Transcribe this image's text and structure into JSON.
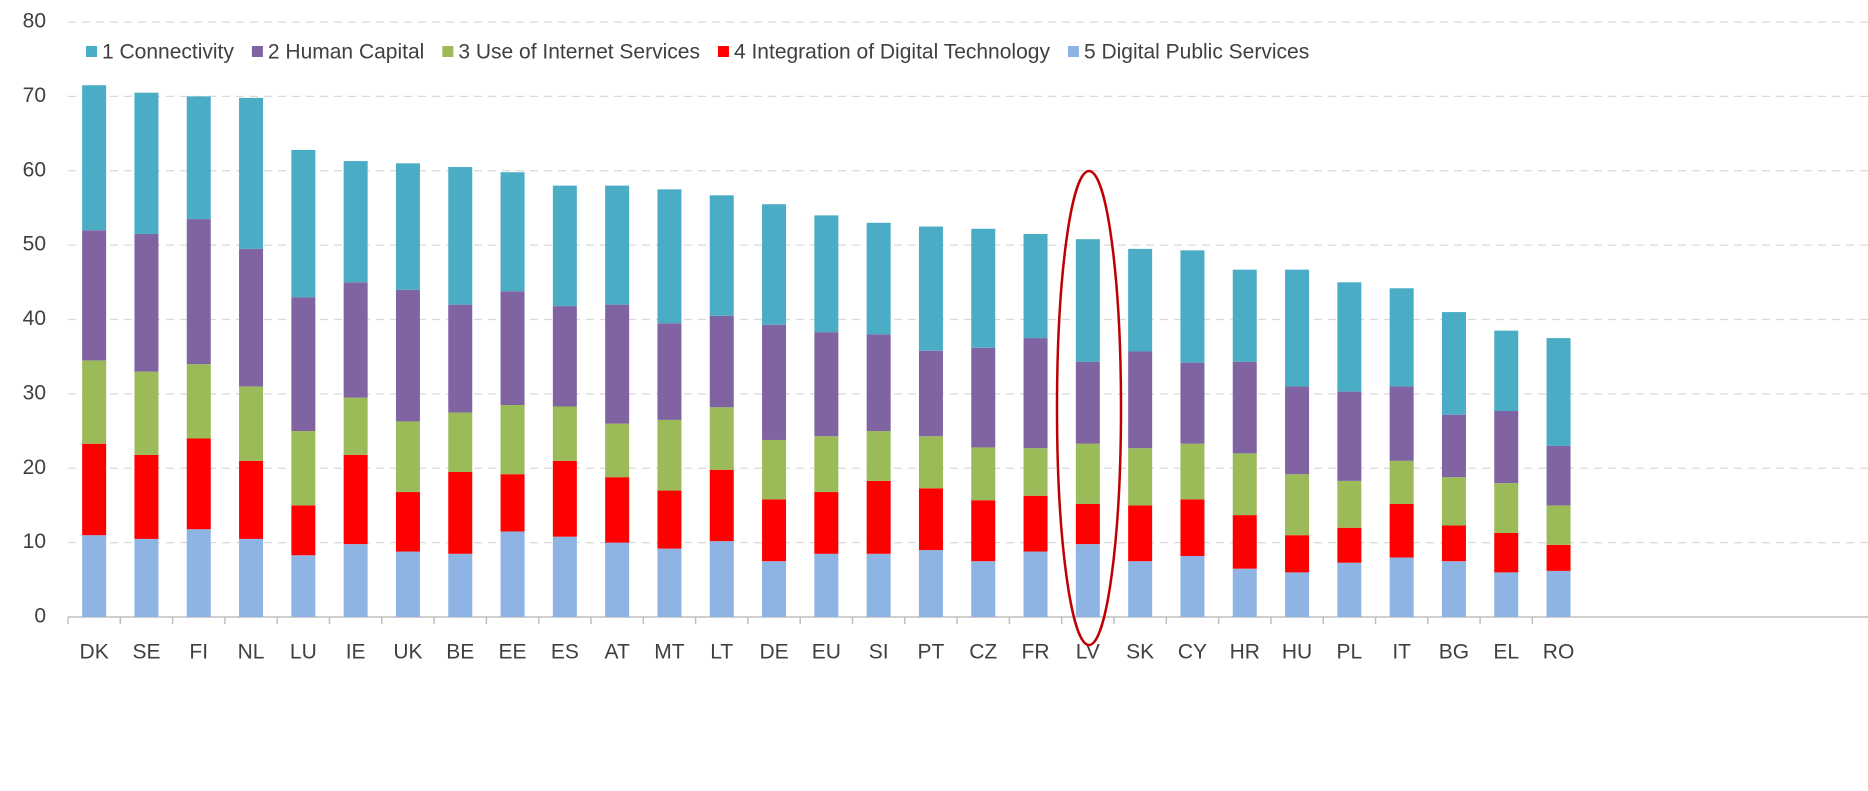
{
  "chart_data": {
    "type": "stacked_bar",
    "categories": [
      "DK",
      "SE",
      "FI",
      "NL",
      "LU",
      "IE",
      "UK",
      "BE",
      "EE",
      "ES",
      "AT",
      "MT",
      "LT",
      "DE",
      "EU",
      "SI",
      "PT",
      "CZ",
      "FR",
      "LV",
      "SK",
      "CY",
      "HR",
      "HU",
      "PL",
      "IT",
      "BG",
      "EL",
      "RO"
    ],
    "series": [
      {
        "name": "1 Connectivity",
        "color": "#4bacc6",
        "values": [
          19.5,
          19,
          16.5,
          20.3,
          19.8,
          16.3,
          17,
          18.5,
          16,
          16.2,
          16,
          18,
          16.2,
          16.2,
          15.7,
          15,
          16.7,
          16,
          14,
          16.5,
          13.8,
          15.1,
          12.4,
          15.7,
          14.7,
          13.2,
          13.8,
          10.8,
          14.5
        ]
      },
      {
        "name": "2 Human Capital",
        "color": "#8064a2",
        "values": [
          17.5,
          18.5,
          19.5,
          18.5,
          18,
          15.5,
          17.7,
          14.5,
          15.3,
          13.5,
          16,
          13,
          12.3,
          15.5,
          14,
          13,
          11.5,
          13.4,
          14.8,
          11,
          13,
          10.9,
          12.3,
          11.8,
          12,
          10,
          8.4,
          9.7,
          8
        ]
      },
      {
        "name": "3 Use of Internet Services",
        "color": "#9bbb59",
        "values": [
          11.2,
          11.2,
          10,
          10,
          10,
          7.7,
          9.5,
          8,
          9.3,
          7.3,
          7.2,
          9.5,
          8.4,
          8,
          7.5,
          6.7,
          7,
          7.1,
          6.4,
          8.1,
          7.7,
          7.5,
          8.3,
          8.2,
          6.3,
          5.8,
          6.5,
          6.7,
          5.3
        ]
      },
      {
        "name": "4 Integration of Digital Technology",
        "color": "#ff0000",
        "values": [
          12.3,
          11.3,
          12.2,
          10.5,
          6.7,
          12,
          8,
          11,
          7.7,
          10.2,
          8.8,
          7.8,
          9.6,
          8.3,
          8.3,
          9.8,
          8.3,
          8.2,
          7.5,
          5.4,
          7.5,
          7.6,
          7.2,
          5,
          4.7,
          7.2,
          4.8,
          5.3,
          3.5
        ]
      },
      {
        "name": "5 Digital Public Services",
        "color": "#8eb4e3",
        "values": [
          11,
          10.5,
          11.8,
          10.5,
          8.3,
          9.8,
          8.8,
          8.5,
          11.5,
          10.8,
          10,
          9.2,
          10.2,
          7.5,
          8.5,
          8.5,
          9,
          7.5,
          8.8,
          9.8,
          7.5,
          8.2,
          6.5,
          6,
          7.3,
          8,
          7.5,
          6,
          6.2
        ]
      }
    ],
    "ylim": [
      0,
      80
    ],
    "yticks": [
      0,
      10,
      20,
      30,
      40,
      50,
      60,
      70,
      80
    ],
    "grid": true
  }
}
